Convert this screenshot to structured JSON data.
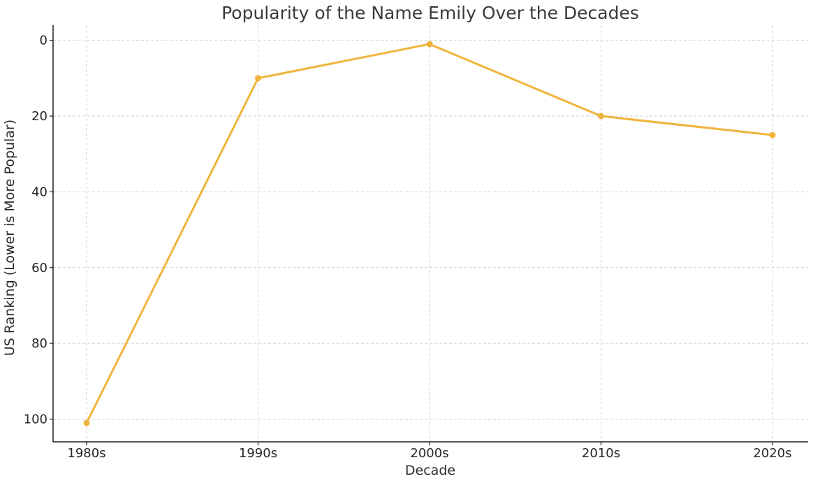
{
  "chart_data": {
    "type": "line",
    "title": "Popularity of the Name Emily Over the Decades",
    "xlabel": "Decade",
    "ylabel": "US Ranking (Lower is More Popular)",
    "categories": [
      "1980s",
      "1990s",
      "2000s",
      "2010s",
      "2020s"
    ],
    "series": [
      {
        "values": [
          101,
          10,
          1,
          20,
          25
        ],
        "color": "#f0b43c"
      }
    ],
    "ylim": [
      106,
      -4
    ],
    "y_inverted": true,
    "yticks": [
      0,
      20,
      40,
      60,
      80,
      100
    ],
    "grid": true,
    "legend": "none",
    "marker": "circle"
  }
}
